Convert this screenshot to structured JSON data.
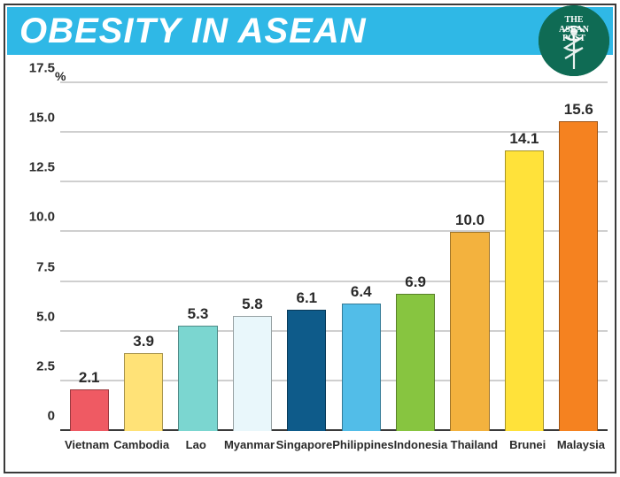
{
  "title": "OBESITY IN ASEAN",
  "title_bar_color": "#2fb8e6",
  "title_text_color": "#ffffff",
  "title_fontsize": 40,
  "logo": {
    "bg": "#0f6b54",
    "line1": "THE",
    "line2": "ASEAN",
    "line3": "POST"
  },
  "chart": {
    "type": "bar",
    "y_unit": "%",
    "ylim": [
      0,
      17.5
    ],
    "ytick_step": 2.5,
    "yticks": [
      "0",
      "2.5",
      "5.0",
      "7.5",
      "10.0",
      "12.5",
      "15.0",
      "17.5"
    ],
    "grid_color": "#cfcfcf",
    "axis_color": "#3a3a3a",
    "background_color": "#ffffff",
    "label_fontsize": 13,
    "ytick_fontsize": 15,
    "value_fontsize": 17,
    "bar_width": 0.72,
    "bar_border": "rgba(0,0,0,0.35)",
    "categories": [
      "Vietnam",
      "Cambodia",
      "Lao",
      "Myanmar",
      "Singapore",
      "Philippines",
      "Indonesia",
      "Thailand",
      "Brunei",
      "Malaysia"
    ],
    "values": [
      2.1,
      3.9,
      5.3,
      5.8,
      6.1,
      6.4,
      6.9,
      10.0,
      14.1,
      15.6
    ],
    "value_labels": [
      "2.1",
      "3.9",
      "5.3",
      "5.8",
      "6.1",
      "6.4",
      "6.9",
      "10.0",
      "14.1",
      "15.6"
    ],
    "bar_colors": [
      "#ef5a63",
      "#ffe277",
      "#7bd6d0",
      "#e9f7fb",
      "#0e5b8a",
      "#52bde8",
      "#87c540",
      "#f3b23e",
      "#ffe23a",
      "#f58220"
    ]
  }
}
